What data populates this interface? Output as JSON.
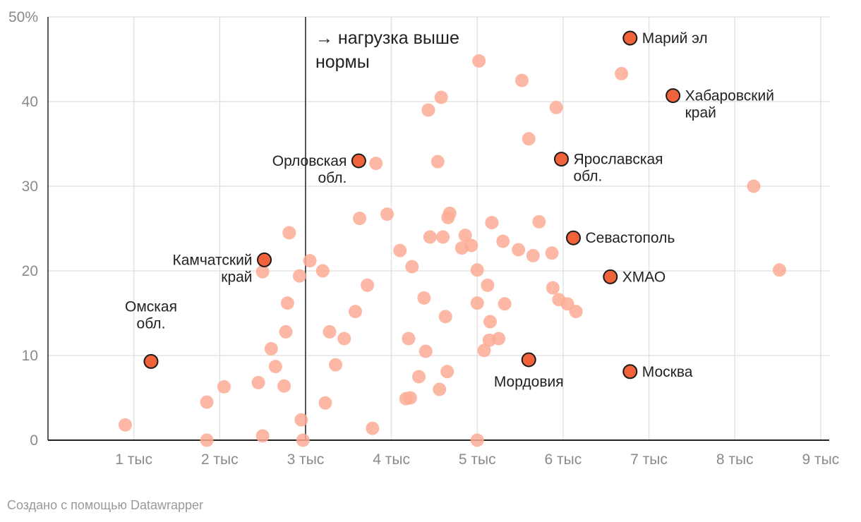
{
  "chart_data": {
    "type": "scatter",
    "title": "",
    "xlabel": "",
    "ylabel": "",
    "xlim": [
      0,
      9.1
    ],
    "ylim": [
      0,
      50
    ],
    "x_ticks": [
      {
        "value": 1,
        "label": "1 тыс"
      },
      {
        "value": 2,
        "label": "2 тыс"
      },
      {
        "value": 3,
        "label": "3 тыс"
      },
      {
        "value": 4,
        "label": "4 тыс"
      },
      {
        "value": 5,
        "label": "5 тыс"
      },
      {
        "value": 6,
        "label": "6 тыс"
      },
      {
        "value": 7,
        "label": "7 тыс"
      },
      {
        "value": 8,
        "label": "8 тыс"
      },
      {
        "value": 9,
        "label": "9 тыс"
      }
    ],
    "y_ticks": [
      {
        "value": 0,
        "label": "0"
      },
      {
        "value": 10,
        "label": "10"
      },
      {
        "value": 20,
        "label": "20"
      },
      {
        "value": 30,
        "label": "30"
      },
      {
        "value": 40,
        "label": "40"
      },
      {
        "value": 50,
        "label": "50%"
      }
    ],
    "grid": true,
    "reference_line": {
      "x": 3.0,
      "label": [
        "→ нагрузка выше",
        "нормы"
      ]
    },
    "colors": {
      "background_point": "#fcab94",
      "highlight_point": "#f0623a",
      "highlight_stroke": "#1a1a1a",
      "grid": "#e3e3e3",
      "axis": "#222222"
    },
    "points": [
      {
        "x": 0.9,
        "y": 1.8
      },
      {
        "x": 1.85,
        "y": 0.0
      },
      {
        "x": 1.85,
        "y": 4.5
      },
      {
        "x": 2.05,
        "y": 6.3
      },
      {
        "x": 2.45,
        "y": 6.8
      },
      {
        "x": 2.5,
        "y": 0.5
      },
      {
        "x": 2.5,
        "y": 19.9
      },
      {
        "x": 2.6,
        "y": 10.8
      },
      {
        "x": 2.65,
        "y": 8.7
      },
      {
        "x": 2.75,
        "y": 6.4
      },
      {
        "x": 2.77,
        "y": 12.8
      },
      {
        "x": 2.79,
        "y": 16.2
      },
      {
        "x": 2.81,
        "y": 24.5
      },
      {
        "x": 2.93,
        "y": 19.4
      },
      {
        "x": 2.95,
        "y": 2.4
      },
      {
        "x": 2.97,
        "y": 0.0
      },
      {
        "x": 3.05,
        "y": 21.2
      },
      {
        "x": 3.2,
        "y": 20.0
      },
      {
        "x": 3.23,
        "y": 4.4
      },
      {
        "x": 3.28,
        "y": 12.8
      },
      {
        "x": 3.35,
        "y": 8.9
      },
      {
        "x": 3.45,
        "y": 12.0
      },
      {
        "x": 3.58,
        "y": 15.2
      },
      {
        "x": 3.63,
        "y": 26.2
      },
      {
        "x": 3.72,
        "y": 18.3
      },
      {
        "x": 3.78,
        "y": 1.4
      },
      {
        "x": 3.82,
        "y": 32.7
      },
      {
        "x": 3.95,
        "y": 26.7
      },
      {
        "x": 4.1,
        "y": 22.4
      },
      {
        "x": 4.17,
        "y": 4.9
      },
      {
        "x": 4.2,
        "y": 12.0
      },
      {
        "x": 4.22,
        "y": 5.0
      },
      {
        "x": 4.24,
        "y": 20.5
      },
      {
        "x": 4.32,
        "y": 7.5
      },
      {
        "x": 4.38,
        "y": 16.8
      },
      {
        "x": 4.4,
        "y": 10.5
      },
      {
        "x": 4.43,
        "y": 39.0
      },
      {
        "x": 4.45,
        "y": 24.0
      },
      {
        "x": 4.54,
        "y": 32.9
      },
      {
        "x": 4.56,
        "y": 6.0
      },
      {
        "x": 4.58,
        "y": 40.5
      },
      {
        "x": 4.6,
        "y": 24.0
      },
      {
        "x": 4.63,
        "y": 14.6
      },
      {
        "x": 4.65,
        "y": 8.1
      },
      {
        "x": 4.66,
        "y": 26.3
      },
      {
        "x": 4.68,
        "y": 26.8
      },
      {
        "x": 4.82,
        "y": 22.7
      },
      {
        "x": 4.86,
        "y": 24.2
      },
      {
        "x": 4.93,
        "y": 23.0
      },
      {
        "x": 5.0,
        "y": 20.1
      },
      {
        "x": 5.0,
        "y": 16.2
      },
      {
        "x": 5.0,
        "y": 0.0
      },
      {
        "x": 5.02,
        "y": 44.8
      },
      {
        "x": 5.08,
        "y": 10.6
      },
      {
        "x": 5.12,
        "y": 18.3
      },
      {
        "x": 5.14,
        "y": 11.8
      },
      {
        "x": 5.15,
        "y": 14.0
      },
      {
        "x": 5.17,
        "y": 25.7
      },
      {
        "x": 5.25,
        "y": 12.0
      },
      {
        "x": 5.3,
        "y": 23.5
      },
      {
        "x": 5.32,
        "y": 16.1
      },
      {
        "x": 5.48,
        "y": 22.5
      },
      {
        "x": 5.52,
        "y": 42.5
      },
      {
        "x": 5.6,
        "y": 35.6
      },
      {
        "x": 5.65,
        "y": 21.8
      },
      {
        "x": 5.72,
        "y": 25.8
      },
      {
        "x": 5.87,
        "y": 22.1
      },
      {
        "x": 5.88,
        "y": 18.0
      },
      {
        "x": 5.92,
        "y": 39.3
      },
      {
        "x": 5.95,
        "y": 16.6
      },
      {
        "x": 6.05,
        "y": 16.1
      },
      {
        "x": 6.15,
        "y": 15.2
      },
      {
        "x": 6.68,
        "y": 43.3
      },
      {
        "x": 8.22,
        "y": 30.0
      },
      {
        "x": 8.52,
        "y": 20.1
      }
    ],
    "highlighted": [
      {
        "name": "Омская обл.",
        "label_lines": [
          "Омская",
          "обл."
        ],
        "x": 1.2,
        "y": 9.3,
        "label_pos": "above"
      },
      {
        "name": "Камчатский край",
        "label_lines": [
          "Камчатский",
          "край"
        ],
        "x": 2.52,
        "y": 21.3,
        "label_pos": "left"
      },
      {
        "name": "Орловская обл.",
        "label_lines": [
          "Орловская",
          "обл."
        ],
        "x": 3.62,
        "y": 33.0,
        "label_pos": "left"
      },
      {
        "name": "Мордовия",
        "label_lines": [
          "Мордовия"
        ],
        "x": 5.6,
        "y": 9.5,
        "label_pos": "below"
      },
      {
        "name": "Ярославская обл.",
        "label_lines": [
          "Ярославская",
          "обл."
        ],
        "x": 5.98,
        "y": 33.2,
        "label_pos": "right"
      },
      {
        "name": "Севастополь",
        "label_lines": [
          "Севастополь"
        ],
        "x": 6.12,
        "y": 23.9,
        "label_pos": "right"
      },
      {
        "name": "ХМАО",
        "label_lines": [
          "ХМАО"
        ],
        "x": 6.55,
        "y": 19.3,
        "label_pos": "right"
      },
      {
        "name": "Марий эл",
        "label_lines": [
          "Марий эл"
        ],
        "x": 6.78,
        "y": 47.5,
        "label_pos": "right"
      },
      {
        "name": "Москва",
        "label_lines": [
          "Москва"
        ],
        "x": 6.78,
        "y": 8.1,
        "label_pos": "right"
      },
      {
        "name": "Хабаровский край",
        "label_lines": [
          "Хабаровский",
          "край"
        ],
        "x": 7.28,
        "y": 40.7,
        "label_pos": "right"
      }
    ]
  },
  "footer": {
    "credit": "Создано с помощью Datawrapper"
  }
}
